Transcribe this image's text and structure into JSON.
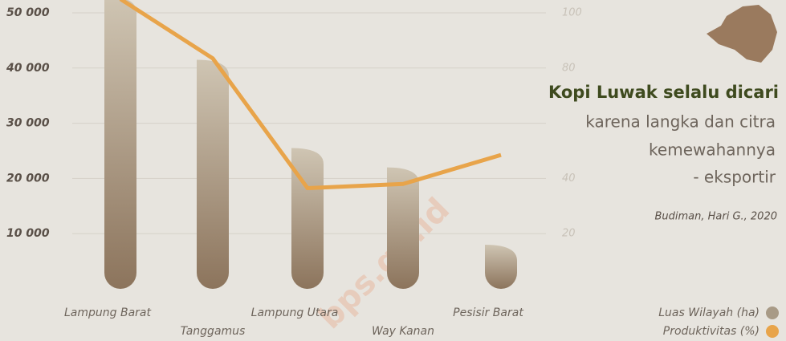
{
  "chart_data": {
    "type": "bar",
    "title": "Kopi Luwak selalu dicari",
    "subtitle": [
      "karena langka dan citra",
      "kemewahannya",
      "- eksportir"
    ],
    "source": "Budiman, Hari G., 2020",
    "watermark": "bps.go.id",
    "categories": [
      "Lampung Barat",
      "Tanggamus",
      "Lampung Utara",
      "Way Kanan",
      "Pesisir Barat"
    ],
    "series": [
      {
        "name": "Luas Wilayah (ha)",
        "color": "#a89a86",
        "values": [
          53000,
          41500,
          25500,
          22000,
          8000
        ]
      },
      {
        "name": "Produktivitas (%)",
        "color": "#e8a44a",
        "axis": "y2",
        "type": "line",
        "values": [
          105,
          83.5,
          36.5,
          38,
          48.5
        ]
      }
    ],
    "ylim": [
      0,
      50000
    ],
    "yticks": [
      {
        "value": 10000,
        "label": "10 000"
      },
      {
        "value": 20000,
        "label": "20 000"
      },
      {
        "value": 30000,
        "label": "30 000"
      },
      {
        "value": 40000,
        "label": "40 000"
      },
      {
        "value": 50000,
        "label": "50 000"
      }
    ],
    "y2lim": [
      0,
      100
    ],
    "y2ticks": [
      20,
      40,
      80,
      100
    ],
    "grid": true
  }
}
